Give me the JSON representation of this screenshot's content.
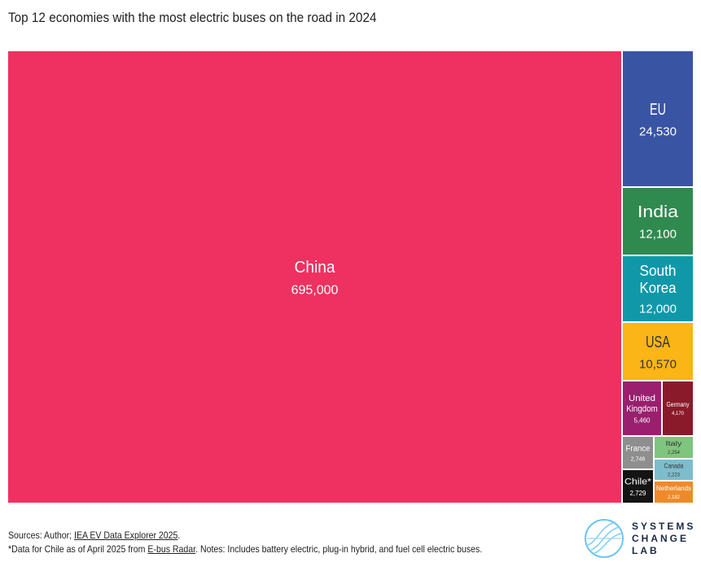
{
  "chart_data": {
    "type": "treemap",
    "title": "Top 12 economies with the most electric buses on the road in 2024",
    "items": [
      {
        "name": "China",
        "label": "695,000",
        "value": 695000,
        "color": "#ee3160"
      },
      {
        "name": "EU",
        "label": "24,530",
        "value": 24530,
        "color": "#3a54a4"
      },
      {
        "name": "India",
        "label": "12,100",
        "value": 12100,
        "color": "#2f8a4f"
      },
      {
        "name": "South Korea",
        "label": "12,000",
        "value": 12000,
        "color": "#1098a8"
      },
      {
        "name": "USA",
        "label": "10,570",
        "value": 10570,
        "color": "#fbb516"
      },
      {
        "name": "United Kingdom",
        "label": "5,460",
        "value": 5460,
        "color": "#9a1f6e"
      },
      {
        "name": "Germany",
        "label": "4,170",
        "value": 4170,
        "color": "#8a1a2a"
      },
      {
        "name": "France",
        "label": "2,746",
        "value": 2746,
        "color": "#8e8e8e"
      },
      {
        "name": "Chile*",
        "label": "2,729",
        "value": 2729,
        "color": "#141414"
      },
      {
        "name": "Italy",
        "label": "2,254",
        "value": 2254,
        "color": "#7fc47f"
      },
      {
        "name": "Canada",
        "label": "2,223",
        "value": 2223,
        "color": "#7ebccc"
      },
      {
        "name": "Netherlands",
        "label": "2,182",
        "value": 2182,
        "color": "#ef8a2a"
      }
    ]
  },
  "footer": {
    "sources_prefix": "Sources: Author; ",
    "sources_link": "IEA EV Data Explorer 2025",
    "sources_suffix": ".",
    "note_prefix": "*Data for Chile as of April 2025 from ",
    "note_link": "E-bus Radar",
    "note_suffix": ". Notes: Includes battery electric, plug-in hybrid, and fuel cell electric buses."
  },
  "logo": {
    "line1": "SYSTEMS",
    "line2": "CHANGE",
    "line3": "LAB"
  }
}
